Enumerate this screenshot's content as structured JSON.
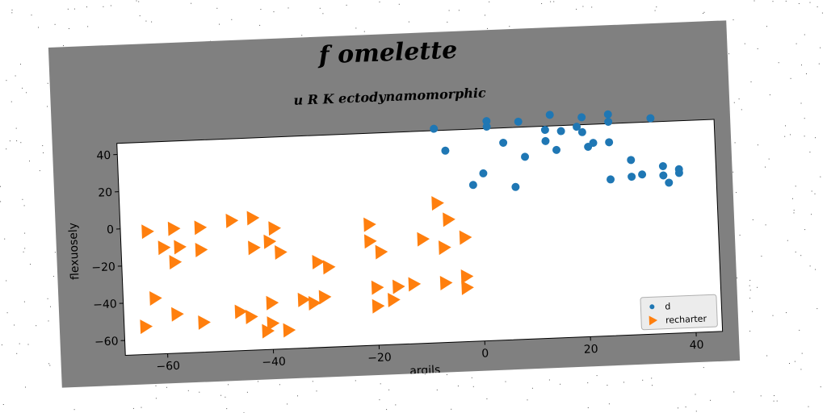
{
  "chart_data": {
    "type": "scatter",
    "title": "f omelette",
    "subtitle": "u R K ectodynamomorphic",
    "xlabel": "argils",
    "ylabel": "flexuosely",
    "xlim": [
      -68,
      45
    ],
    "ylim": [
      -68,
      46
    ],
    "xticks": [
      -60,
      -40,
      -20,
      0,
      20,
      40
    ],
    "yticks": [
      -60,
      -40,
      -20,
      0,
      20,
      40
    ],
    "legend_position": "bottom-right",
    "series": [
      {
        "name": "d",
        "marker": "circle",
        "color": "#1f77b4",
        "points": [
          [
            -8,
            47
          ],
          [
            2,
            50
          ],
          [
            2,
            47
          ],
          [
            8,
            49
          ],
          [
            14,
            52
          ],
          [
            20,
            50
          ],
          [
            25,
            51
          ],
          [
            33,
            48
          ],
          [
            -6,
            35
          ],
          [
            5,
            38
          ],
          [
            9,
            30
          ],
          [
            13,
            44
          ],
          [
            13,
            38
          ],
          [
            15,
            33
          ],
          [
            16,
            43
          ],
          [
            19,
            45
          ],
          [
            20,
            42
          ],
          [
            21,
            34
          ],
          [
            22,
            36
          ],
          [
            25,
            47
          ],
          [
            25,
            36
          ],
          [
            1,
            22
          ],
          [
            -1,
            16
          ],
          [
            7,
            14
          ],
          [
            25,
            16
          ],
          [
            29,
            26
          ],
          [
            29,
            17
          ],
          [
            31,
            18
          ],
          [
            35,
            22
          ],
          [
            35,
            17
          ],
          [
            36,
            13
          ],
          [
            38,
            20
          ],
          [
            38,
            18
          ]
        ]
      },
      {
        "name": "recharter",
        "marker": "triangle-right",
        "color": "#ff7f0e",
        "points": [
          [
            -63,
            -2
          ],
          [
            -58,
            -1
          ],
          [
            -53,
            -1
          ],
          [
            -47,
            2
          ],
          [
            -43,
            3
          ],
          [
            -39,
            -3
          ],
          [
            -21,
            -3
          ],
          [
            -8,
            7
          ],
          [
            -6,
            -2
          ],
          [
            -60,
            -11
          ],
          [
            -57,
            -11
          ],
          [
            -53,
            -13
          ],
          [
            -43,
            -13
          ],
          [
            -40,
            -10
          ],
          [
            -38,
            -16
          ],
          [
            -31,
            -22
          ],
          [
            -29,
            -25
          ],
          [
            -21,
            -12
          ],
          [
            -19,
            -18
          ],
          [
            -11,
            -12
          ],
          [
            -7,
            -17
          ],
          [
            -3,
            -12
          ],
          [
            -58,
            -19
          ],
          [
            -62,
            -38
          ],
          [
            -44,
            -50
          ],
          [
            -40,
            -43
          ],
          [
            -34,
            -42
          ],
          [
            -32,
            -44
          ],
          [
            -30,
            -41
          ],
          [
            -20,
            -37
          ],
          [
            -16,
            -37
          ],
          [
            -13,
            -36
          ],
          [
            -7,
            -36
          ],
          [
            -3,
            -33
          ],
          [
            -3,
            -39
          ],
          [
            -17,
            -44
          ],
          [
            -64,
            -53
          ],
          [
            -58,
            -47
          ],
          [
            -53,
            -52
          ],
          [
            -46,
            -47
          ],
          [
            -41,
            -58
          ],
          [
            -40,
            -54
          ],
          [
            -37,
            -58
          ],
          [
            -20,
            -47
          ]
        ]
      }
    ]
  }
}
